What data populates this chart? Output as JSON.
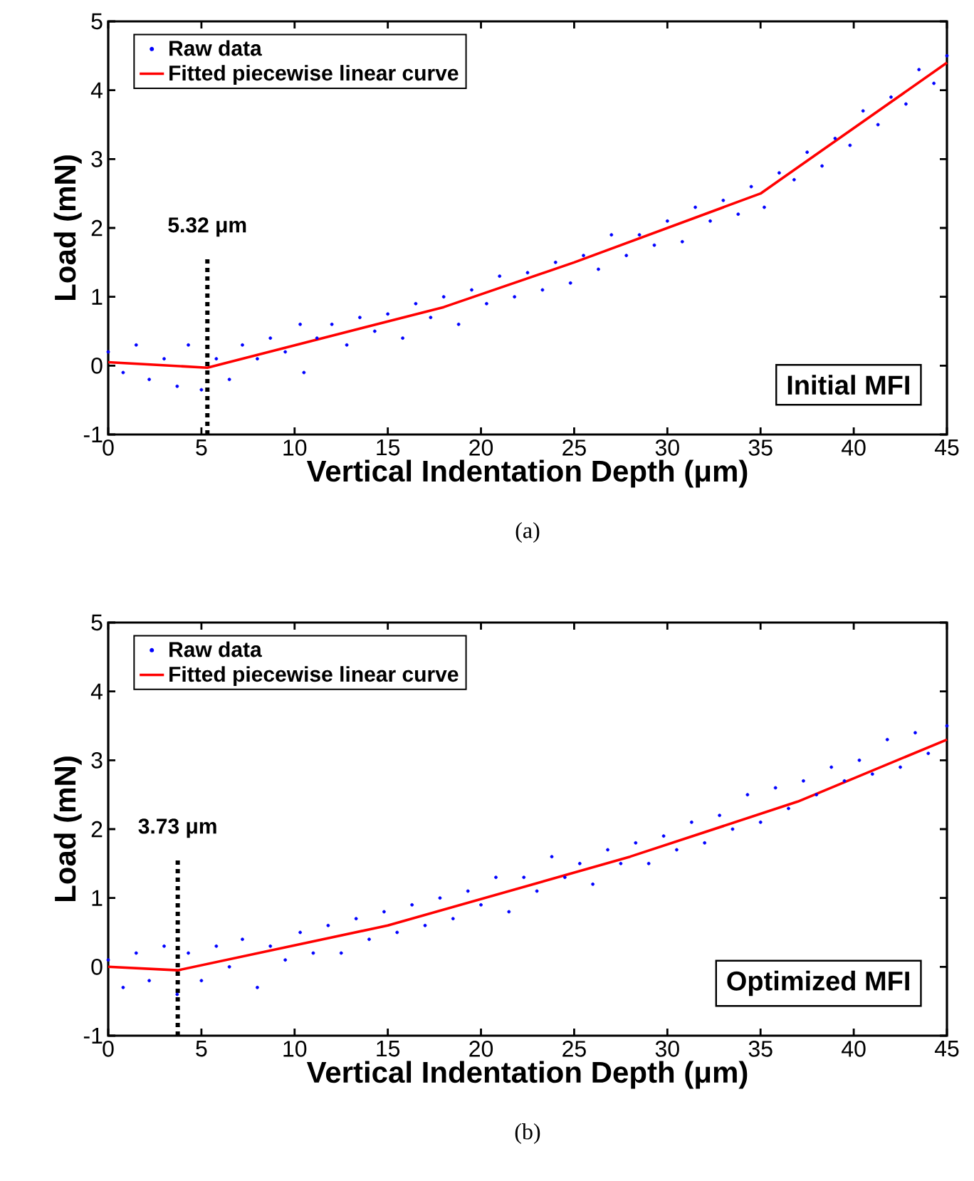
{
  "chart_data": [
    {
      "type": "line",
      "xlabel": "Vertical Indentation Depth (μm)",
      "ylabel": "Load (mN)",
      "xlim": [
        0,
        45
      ],
      "ylim": [
        -1,
        5
      ],
      "xticks": [
        0,
        5,
        10,
        15,
        20,
        25,
        30,
        35,
        40,
        45
      ],
      "yticks": [
        -1,
        0,
        1,
        2,
        3,
        4,
        5
      ],
      "legend": "top left",
      "grid": false,
      "series": [
        {
          "name": "Raw data",
          "type": "scatter",
          "marker": "circle",
          "color": "#0000ff",
          "x": [
            0,
            0.8,
            1.5,
            2.2,
            3,
            3.7,
            4.3,
            5,
            5.8,
            6.5,
            7.2,
            8,
            8.7,
            9.5,
            10.3,
            10.5,
            11.2,
            12,
            12.8,
            13.5,
            14.3,
            15,
            15.8,
            16.5,
            17.3,
            18,
            18.8,
            19.5,
            20.3,
            21,
            21.8,
            22.5,
            23.3,
            24,
            24.8,
            25.5,
            26.3,
            27,
            27.8,
            28.5,
            29.3,
            30,
            30.8,
            31.5,
            32.3,
            33,
            33.8,
            34.5,
            35.2,
            36,
            36.8,
            37.5,
            38.3,
            39,
            39.8,
            40.5,
            41.3,
            42,
            42.8,
            43.5,
            44.3,
            45
          ],
          "values": [
            0.2,
            -0.1,
            0.3,
            -0.2,
            0.1,
            -0.3,
            0.3,
            -0.35,
            0.1,
            -0.2,
            0.3,
            0.1,
            0.4,
            0.2,
            0.6,
            -0.1,
            0.4,
            0.6,
            0.3,
            0.7,
            0.5,
            0.75,
            0.4,
            0.9,
            0.7,
            1.0,
            0.6,
            1.1,
            0.9,
            1.3,
            1.0,
            1.35,
            1.1,
            1.5,
            1.2,
            1.6,
            1.4,
            1.9,
            1.6,
            1.9,
            1.75,
            2.1,
            1.8,
            2.3,
            2.1,
            2.4,
            2.2,
            2.6,
            2.3,
            2.8,
            2.7,
            3.1,
            2.9,
            3.3,
            3.2,
            3.7,
            3.5,
            3.9,
            3.8,
            4.3,
            4.1,
            4.5
          ]
        },
        {
          "name": "Fitted piecewise linear curve",
          "marker": "none",
          "line_style": "solid",
          "color": "#ff0000",
          "x": [
            0,
            5.32,
            18,
            25,
            35,
            45
          ],
          "values": [
            0.05,
            -0.03,
            0.85,
            1.5,
            2.5,
            4.4
          ]
        }
      ],
      "ref_lines": [
        {
          "axis": "x",
          "value": 5.32,
          "label": "5.32 μm",
          "color": "#000000",
          "line_style": "dotted"
        }
      ],
      "annotations": [
        "Initial MFI",
        "(a)"
      ]
    },
    {
      "type": "line",
      "xlabel": "Vertical Indentation Depth (μm)",
      "ylabel": "Load (mN)",
      "xlim": [
        0,
        45
      ],
      "ylim": [
        -1,
        5
      ],
      "xticks": [
        0,
        5,
        10,
        15,
        20,
        25,
        30,
        35,
        40,
        45
      ],
      "yticks": [
        -1,
        0,
        1,
        2,
        3,
        4,
        5
      ],
      "legend": "top left",
      "grid": false,
      "series": [
        {
          "name": "Raw data",
          "type": "scatter",
          "marker": "circle",
          "color": "#0000ff",
          "x": [
            0,
            0.8,
            1.5,
            2.2,
            3,
            3.7,
            4.3,
            5,
            5.8,
            6.5,
            7.2,
            8,
            8.7,
            9.5,
            10.3,
            11,
            11.8,
            12.5,
            13.3,
            14,
            14.8,
            15.5,
            16.3,
            17,
            17.8,
            18.5,
            19.3,
            20,
            20.8,
            21.5,
            22.3,
            23,
            23.8,
            24.5,
            25.3,
            26,
            26.8,
            27.5,
            28.3,
            29,
            29.8,
            30.5,
            31.3,
            32,
            32.8,
            33.5,
            34.3,
            35,
            35.8,
            36.5,
            37.3,
            38,
            38.8,
            39.5,
            40.3,
            41,
            41.8,
            42.5,
            43.3,
            44,
            45
          ],
          "values": [
            0.1,
            -0.3,
            0.2,
            -0.2,
            0.3,
            -0.4,
            0.2,
            -0.2,
            0.3,
            0.0,
            0.4,
            -0.3,
            0.3,
            0.1,
            0.5,
            0.2,
            0.6,
            0.2,
            0.7,
            0.4,
            0.8,
            0.5,
            0.9,
            0.6,
            1.0,
            0.7,
            1.1,
            0.9,
            1.3,
            0.8,
            1.3,
            1.1,
            1.6,
            1.3,
            1.5,
            1.2,
            1.7,
            1.5,
            1.8,
            1.5,
            1.9,
            1.7,
            2.1,
            1.8,
            2.2,
            2.0,
            2.5,
            2.1,
            2.6,
            2.3,
            2.7,
            2.5,
            2.9,
            2.7,
            3.0,
            2.8,
            3.3,
            2.9,
            3.4,
            3.1,
            3.5
          ]
        },
        {
          "name": "Fitted piecewise linear curve",
          "marker": "none",
          "line_style": "solid",
          "color": "#ff0000",
          "x": [
            0,
            3.73,
            15,
            28,
            37,
            45
          ],
          "values": [
            0.0,
            -0.05,
            0.6,
            1.6,
            2.4,
            3.3
          ]
        }
      ],
      "ref_lines": [
        {
          "axis": "x",
          "value": 3.73,
          "label": "3.73 μm",
          "color": "#000000",
          "line_style": "dotted"
        }
      ],
      "annotations": [
        "Optimized MFI",
        "(b)"
      ]
    }
  ]
}
